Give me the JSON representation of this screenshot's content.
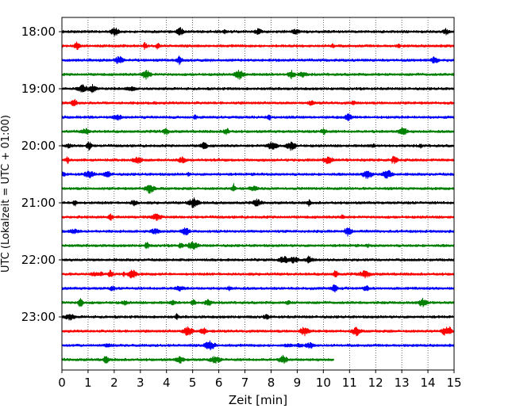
{
  "chart_data": {
    "type": "line",
    "subtype": "helicorder-seismogram",
    "title": "",
    "xlabel": "Zeit  [min]",
    "ylabel": "UTC (Lokalzeit = UTC + 01:00)",
    "xlim": [
      0,
      15
    ],
    "x_ticks": [
      0,
      1,
      2,
      3,
      4,
      5,
      6,
      7,
      8,
      9,
      10,
      11,
      12,
      13,
      14,
      15
    ],
    "y_tick_labels": [
      "18:00",
      "19:00",
      "20:00",
      "21:00",
      "22:00",
      "23:00"
    ],
    "trace_interval_min": 15,
    "row_start_times": [
      "18:00",
      "18:15",
      "18:30",
      "18:45",
      "19:00",
      "19:15",
      "19:30",
      "19:45",
      "20:00",
      "20:15",
      "20:30",
      "20:45",
      "21:00",
      "21:15",
      "21:30",
      "21:45",
      "22:00",
      "22:15",
      "22:30",
      "22:45",
      "23:00",
      "23:15",
      "23:30",
      "23:45"
    ],
    "last_trace_end_min": 10.4,
    "grid": "vertical dotted",
    "colors": [
      "#000000",
      "#ff0000",
      "#0000ff",
      "#008000"
    ]
  }
}
